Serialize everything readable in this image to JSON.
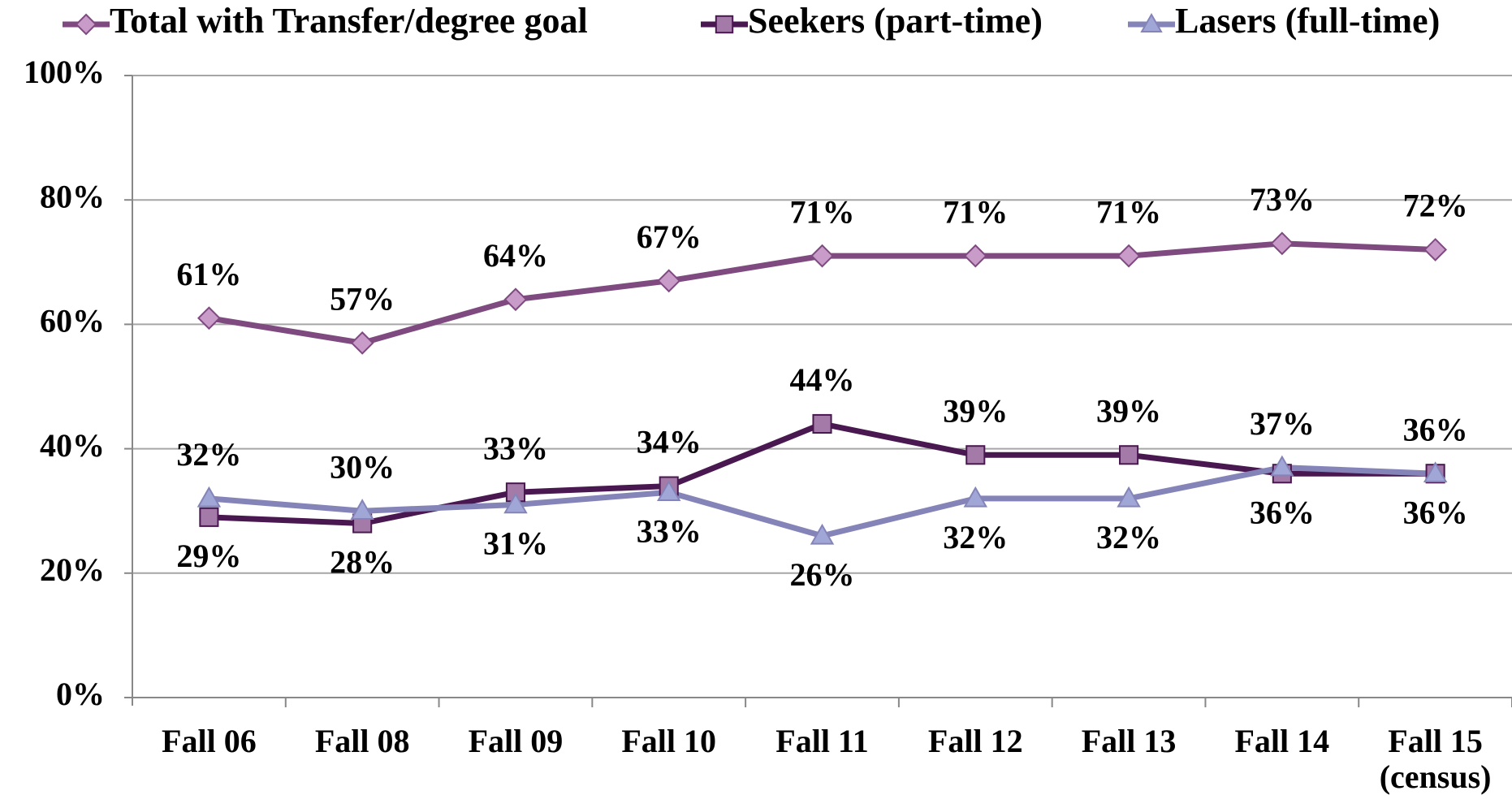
{
  "chart_data": {
    "type": "line",
    "categories": [
      "Fall 06",
      "Fall 08",
      "Fall 09",
      "Fall 10",
      "Fall 11",
      "Fall 12",
      "Fall 13",
      "Fall 14",
      "Fall 15 (census)"
    ],
    "series": [
      {
        "name": "Total with Transfer/degree goal",
        "color": "#7e4a80",
        "marker": "diamond",
        "marker_fill": "#c99bc9",
        "values": [
          61,
          57,
          64,
          67,
          71,
          71,
          71,
          73,
          72
        ],
        "value_labels": [
          "61%",
          "57%",
          "64%",
          "67%",
          "71%",
          "71%",
          "71%",
          "73%",
          "72%"
        ]
      },
      {
        "name": "Seekers (part-time)",
        "color": "#4a1850",
        "marker": "square",
        "marker_fill": "#a47aa8",
        "values": [
          29,
          28,
          33,
          34,
          44,
          39,
          39,
          36,
          36
        ],
        "value_labels": [
          "29%",
          "28%",
          "33%",
          "34%",
          "44%",
          "39%",
          "39%",
          "36%",
          "36%"
        ]
      },
      {
        "name": "Lasers (full-time)",
        "color": "#8484b8",
        "marker": "triangle",
        "marker_fill": "#a0a6d6",
        "values": [
          32,
          30,
          31,
          33,
          26,
          32,
          32,
          37,
          36
        ],
        "value_labels": [
          "32%",
          "30%",
          "31%",
          "33%",
          "26%",
          "32%",
          "32%",
          "37%",
          "36%"
        ]
      }
    ],
    "ylim": [
      0,
      100
    ],
    "yticks": [
      {
        "value": 0,
        "label": "0%"
      },
      {
        "value": 20,
        "label": "20%"
      },
      {
        "value": 40,
        "label": "40%"
      },
      {
        "value": 60,
        "label": "60%"
      },
      {
        "value": 80,
        "label": "80%"
      },
      {
        "value": 100,
        "label": "100%"
      }
    ],
    "grid": true,
    "legend": "top"
  }
}
